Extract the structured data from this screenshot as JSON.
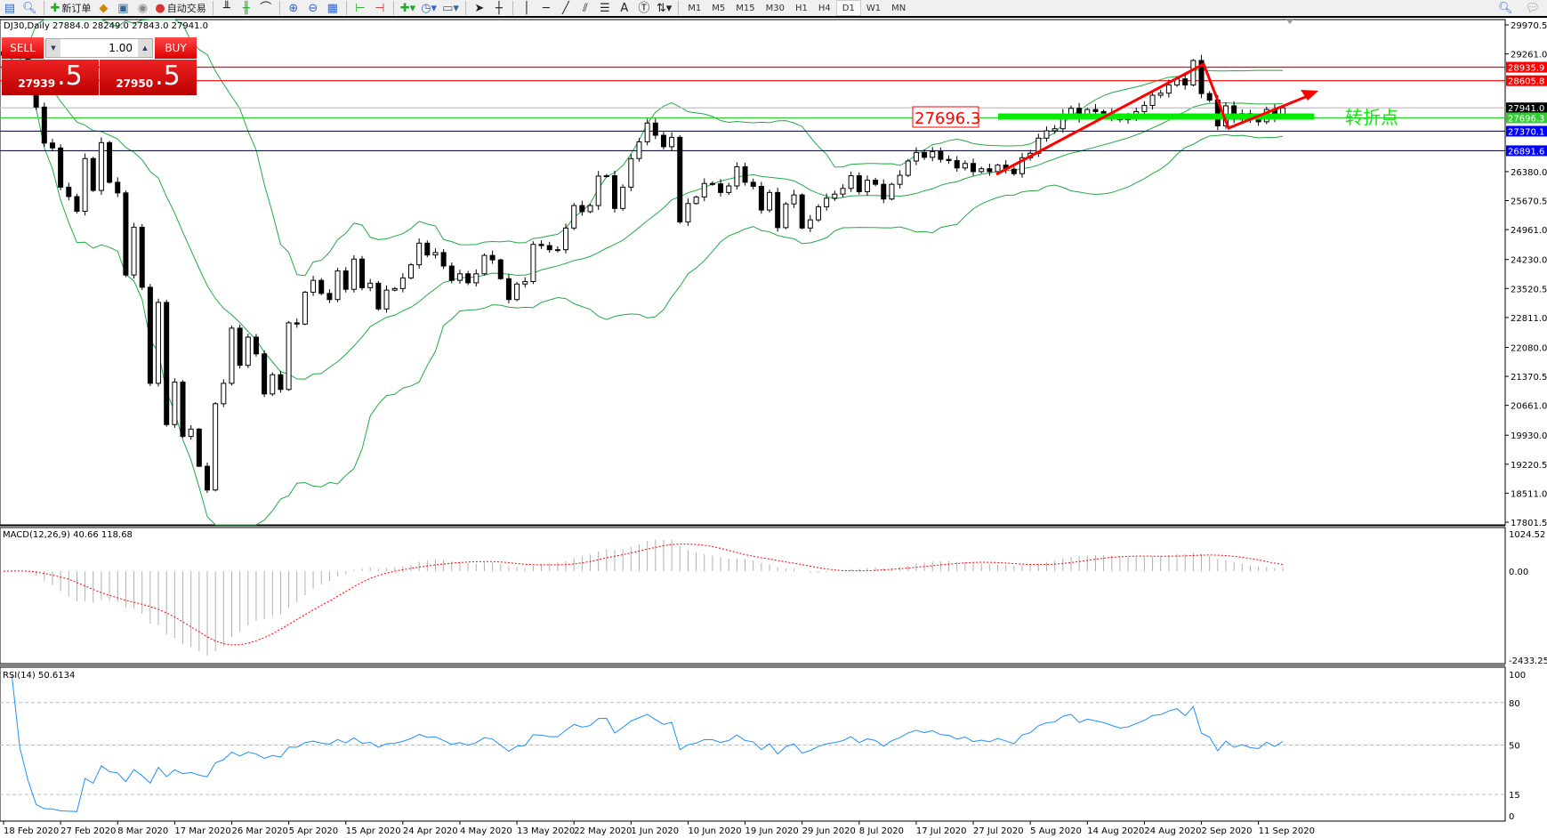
{
  "toolbar": {
    "new_order": "新订单",
    "auto_trading": "自动交易",
    "timeframes": [
      "M1",
      "M5",
      "M15",
      "M30",
      "H1",
      "H4",
      "D1",
      "W1",
      "MN"
    ],
    "active_timeframe": "D1",
    "icons": [
      "market-watch-icon",
      "navigator-icon",
      "new-order-icon",
      "strategy-tester-icon",
      "history-icon",
      "signal-icon",
      "auto-trading-icon",
      "bar-chart-icon",
      "candlestick-icon",
      "line-chart-icon",
      "zoom-in-icon",
      "zoom-out-icon",
      "tile-windows-icon",
      "chart-shift-icon",
      "auto-scroll-icon",
      "indicators-icon",
      "periods-icon",
      "templates-icon",
      "cursor-icon",
      "crosshair-icon",
      "vertical-line-icon",
      "horizontal-line-icon",
      "trendline-icon",
      "equidistant-channel-icon",
      "fibonacci-icon",
      "text-icon",
      "text-label-icon",
      "arrows-icon",
      "search-icon",
      "chat-icon"
    ]
  },
  "chart": {
    "title": "DJ30,Daily  27884.0 28249.0 27843.0 27941.0",
    "trade_panel": {
      "sell_label": "SELL",
      "buy_label": "BUY",
      "lot": "1.00",
      "sell_price_main": "27939",
      "sell_price_frac": ".5",
      "buy_price_main": "27950",
      "buy_price_frac": ".5"
    },
    "annotation_price": "27696.3",
    "annotation_text": "转折点",
    "colors": {
      "up_candle": "#ffffff",
      "down_candle": "#000000",
      "bands": "#22aa44",
      "resistance": "#ff0000",
      "support": "#0000ff",
      "pivot": "#00ee00",
      "trend_arrow": "#ff0000",
      "macd_hist": "#b0b0b0",
      "macd_signal": "#ff0000",
      "rsi": "#1e90ff"
    }
  },
  "chart_data": {
    "type": "candlestick",
    "symbol": "DJ30",
    "timeframe": "Daily",
    "y_ticks": [
      "29970.5",
      "29261.0",
      "26380.0",
      "25670.5",
      "24961.0",
      "24230.0",
      "23520.5",
      "22811.0",
      "22080.0",
      "21370.5",
      "20661.0",
      "19930.0",
      "19220.5",
      "18511.0",
      "17801.5"
    ],
    "ylim": [
      17801.5,
      29970.5
    ],
    "x_labels": [
      "18 Feb 2020",
      "27 Feb 2020",
      "8 Mar 2020",
      "17 Mar 2020",
      "26 Mar 2020",
      "5 Apr 2020",
      "15 Apr 2020",
      "24 Apr 2020",
      "4 May 2020",
      "13 May 2020",
      "22 May 2020",
      "1 Jun 2020",
      "10 Jun 2020",
      "19 Jun 2020",
      "29 Jun 2020",
      "8 Jul 2020",
      "17 Jul 2020",
      "27 Jul 2020",
      "5 Aug 2020",
      "14 Aug 2020",
      "24 Aug 2020",
      "2 Sep 2020",
      "11 Sep 2020"
    ],
    "closes": [
      29230,
      29350,
      29220,
      28990,
      27960,
      27080,
      26960,
      26000,
      25770,
      25410,
      26700,
      25920,
      27090,
      26120,
      25860,
      23850,
      25020,
      23550,
      21200,
      23180,
      20190,
      21230,
      19900,
      20080,
      19170,
      18590,
      20700,
      21200,
      22550,
      21640,
      22330,
      21920,
      20940,
      21410,
      21050,
      22680,
      22650,
      23430,
      23720,
      23400,
      23250,
      23950,
      23500,
      24240,
      23540,
      23650,
      23020,
      23480,
      23520,
      23780,
      24100,
      24630,
      24340,
      24400,
      24070,
      23720,
      23880,
      23660,
      23880,
      24330,
      24220,
      23760,
      23250,
      23630,
      23690,
      24600,
      24570,
      24470,
      24470,
      25000,
      25550,
      25400,
      25550,
      26270,
      26280,
      25480,
      26000,
      26700,
      27110,
      27570,
      27270,
      26990,
      27220,
      25150,
      25600,
      25760,
      26090,
      26080,
      25870,
      26030,
      26500,
      26120,
      26020,
      25440,
      25870,
      25010,
      25590,
      25810,
      25000,
      25200,
      25520,
      25730,
      25830,
      25970,
      26280,
      25890,
      26170,
      26070,
      25710,
      26070,
      26290,
      26640,
      26850,
      26730,
      26870,
      26680,
      26650,
      26470,
      26580,
      26380,
      26450,
      26380,
      26540,
      26440,
      26330,
      26720,
      26830,
      27200,
      27380,
      27430,
      27790,
      27930,
      27690,
      27900,
      27850,
      27800,
      27720,
      27650,
      27700,
      27850,
      28000,
      28250,
      28300,
      28500,
      28650,
      28500,
      29100,
      28290,
      28130,
      27500,
      27990,
      27660,
      27800,
      27650,
      27600,
      27900,
      27700,
      27941
    ],
    "last_ohlc": {
      "open": 27884.0,
      "high": 28249.0,
      "low": 27843.0,
      "close": 27941.0
    },
    "horizontal_lines": [
      {
        "price": 28935.9,
        "label": "28935.9",
        "color": "#ff0000"
      },
      {
        "price": 28605.8,
        "label": "28605.8",
        "color": "#ff0000"
      },
      {
        "price": 27941.0,
        "label": "27941.0",
        "color": "#000000"
      },
      {
        "price": 27696.3,
        "label": "27696.3",
        "color": "#33cc33"
      },
      {
        "price": 27370.1,
        "label": "27370.1",
        "color": "#0000ff"
      },
      {
        "price": 26891.6,
        "label": "26891.6",
        "color": "#0000ff"
      }
    ],
    "indicators": {
      "bollinger": {
        "period": 20,
        "deviation": 2
      },
      "macd": {
        "label": "MACD(12,26,9) 40.66 118.68",
        "fast": 12,
        "slow": 26,
        "signal": 9,
        "ticks": [
          "1024.52",
          "0.00",
          "-2433.25"
        ],
        "range": [
          -2433.25,
          1024.52
        ]
      },
      "rsi": {
        "label": "RSI(14) 50.6134",
        "period": 14,
        "ticks": [
          "100",
          "80",
          "50",
          "15",
          "0"
        ],
        "levels": [
          80,
          50,
          15
        ]
      }
    }
  }
}
